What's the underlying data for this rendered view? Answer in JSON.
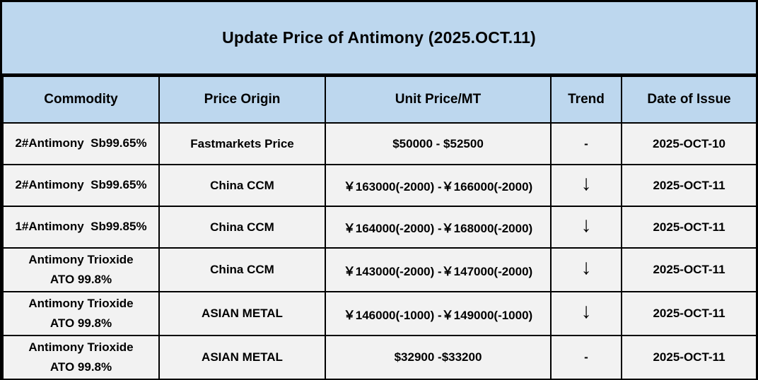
{
  "title": "Update Price of Antimony (2025.OCT.11)",
  "colors": {
    "header_bg": "#BDD7EE",
    "row_bg": "#F2F2F2",
    "border": "#000000",
    "text": "#000000"
  },
  "table": {
    "headers": [
      "Commodity",
      "Price Origin",
      "Unit Price/MT",
      "Trend",
      "Date of Issue"
    ],
    "rows": [
      {
        "commodity": "2#Antimony  Sb99.65%",
        "origin": "Fastmarkets Price",
        "price": "$50000 - $52500",
        "trend": "-",
        "date": "2025-OCT-10"
      },
      {
        "commodity": "2#Antimony  Sb99.65%",
        "origin": "China CCM",
        "price": "￥163000(-2000) -￥166000(-2000)",
        "trend": "↓",
        "date": "2025-OCT-11"
      },
      {
        "commodity": "1#Antimony  Sb99.85%",
        "origin": "China CCM",
        "price": "￥164000(-2000) -￥168000(-2000)",
        "trend": "↓",
        "date": "2025-OCT-11"
      },
      {
        "commodity": "Antimony Trioxide\nATO 99.8%",
        "origin": "China CCM",
        "price": "￥143000(-2000) -￥147000(-2000)",
        "trend": "↓",
        "date": "2025-OCT-11"
      },
      {
        "commodity": "Antimony Trioxide\nATO 99.8%",
        "origin": "ASIAN METAL",
        "price": "￥146000(-1000) -￥149000(-1000)",
        "trend": "↓",
        "date": "2025-OCT-11"
      },
      {
        "commodity": "Antimony Trioxide\nATO 99.8%",
        "origin": "ASIAN METAL",
        "price": "$32900 -$33200",
        "trend": "-",
        "date": "2025-OCT-11"
      }
    ]
  }
}
